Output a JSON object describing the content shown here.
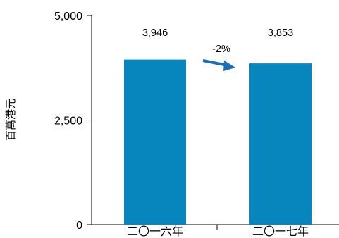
{
  "chart_data": {
    "type": "bar",
    "categories": [
      "二〇一六年",
      "二〇一七年"
    ],
    "values": [
      3946,
      3853
    ],
    "data_labels": [
      "3,946",
      "3,853"
    ],
    "ylabel": "百萬港元",
    "ylim": [
      0,
      5000
    ],
    "yticks": [
      0,
      2500,
      5000
    ],
    "ytick_labels": [
      "0",
      "2,500",
      "5,000"
    ],
    "grid": false,
    "bar_color": "#0785bd",
    "annotation": {
      "text": "-2%",
      "arrow_color": "#1a6fb8"
    }
  }
}
